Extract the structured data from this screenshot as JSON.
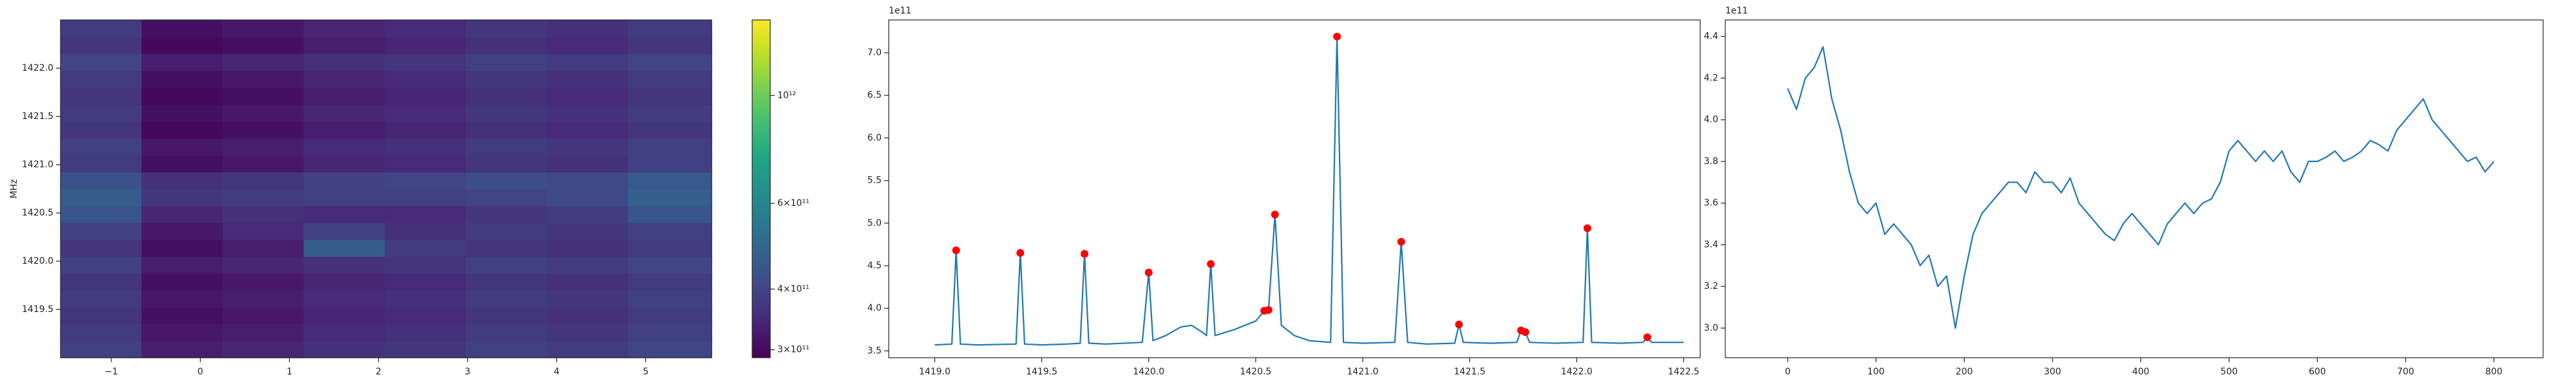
{
  "chart_data": [
    {
      "type": "heatmap",
      "ylabel": "MHz",
      "colormap": "viridis",
      "xlim": [
        -1.57,
        5.74
      ],
      "ylim": [
        1419.0,
        1422.5
      ],
      "xticks": [
        {
          "value": -1,
          "label": "−1"
        },
        0,
        1,
        2,
        3,
        4,
        5
      ],
      "yticks": [
        1419.5,
        {
          "value": 1420.0,
          "label": "1420.0"
        },
        1420.5,
        {
          "value": 1421.0,
          "label": "1421.0"
        },
        1421.5,
        {
          "value": 1422.0,
          "label": "1422.0"
        }
      ],
      "x_edges": [
        -1.57,
        -0.66,
        0.25,
        1.16,
        2.07,
        2.98,
        3.89,
        4.8,
        5.74
      ],
      "y_edges": [
        1419.0,
        1419.175,
        1419.35,
        1419.525,
        1419.7,
        1419.875,
        1420.05,
        1420.225,
        1420.4,
        1420.575,
        1420.75,
        1420.925,
        1421.1,
        1421.275,
        1421.45,
        1421.625,
        1421.8,
        1421.975,
        1422.15,
        1422.325,
        1422.5
      ],
      "z": [
        [
          390000000000.0,
          330000000000.0,
          340000000000.0,
          360000000000.0,
          370000000000.0,
          390000000000.0,
          380000000000.0,
          400000000000.0
        ],
        [
          380000000000.0,
          320000000000.0,
          330000000000.0,
          350000000000.0,
          360000000000.0,
          380000000000.0,
          370000000000.0,
          390000000000.0
        ],
        [
          370000000000.0,
          310000000000.0,
          320000000000.0,
          340000000000.0,
          350000000000.0,
          370000000000.0,
          360000000000.0,
          380000000000.0
        ],
        [
          380000000000.0,
          320000000000.0,
          330000000000.0,
          350000000000.0,
          360000000000.0,
          380000000000.0,
          370000000000.0,
          390000000000.0
        ],
        [
          370000000000.0,
          310000000000.0,
          320000000000.0,
          340000000000.0,
          350000000000.0,
          370000000000.0,
          360000000000.0,
          380000000000.0
        ],
        [
          390000000000.0,
          330000000000.0,
          340000000000.0,
          360000000000.0,
          370000000000.0,
          390000000000.0,
          380000000000.0,
          400000000000.0
        ],
        [
          370000000000.0,
          310000000000.0,
          330000000000.0,
          460000000000.0,
          380000000000.0,
          370000000000.0,
          360000000000.0,
          380000000000.0
        ],
        [
          390000000000.0,
          320000000000.0,
          350000000000.0,
          390000000000.0,
          360000000000.0,
          380000000000.0,
          370000000000.0,
          390000000000.0
        ],
        [
          440000000000.0,
          340000000000.0,
          360000000000.0,
          350000000000.0,
          350000000000.0,
          370000000000.0,
          380000000000.0,
          440000000000.0
        ],
        [
          460000000000.0,
          370000000000.0,
          380000000000.0,
          390000000000.0,
          390000000000.0,
          400000000000.0,
          410000000000.0,
          470000000000.0
        ],
        [
          430000000000.0,
          360000000000.0,
          370000000000.0,
          390000000000.0,
          400000000000.0,
          420000000000.0,
          410000000000.0,
          450000000000.0
        ],
        [
          380000000000.0,
          310000000000.0,
          320000000000.0,
          340000000000.0,
          350000000000.0,
          370000000000.0,
          360000000000.0,
          390000000000.0
        ],
        [
          390000000000.0,
          320000000000.0,
          330000000000.0,
          350000000000.0,
          360000000000.0,
          380000000000.0,
          370000000000.0,
          390000000000.0
        ],
        [
          370000000000.0,
          300000000000.0,
          310000000000.0,
          330000000000.0,
          340000000000.0,
          360000000000.0,
          350000000000.0,
          370000000000.0
        ],
        [
          380000000000.0,
          310000000000.0,
          320000000000.0,
          340000000000.0,
          350000000000.0,
          370000000000.0,
          360000000000.0,
          380000000000.0
        ],
        [
          370000000000.0,
          300000000000.0,
          310000000000.0,
          330000000000.0,
          340000000000.0,
          360000000000.0,
          350000000000.0,
          370000000000.0
        ],
        [
          380000000000.0,
          310000000000.0,
          320000000000.0,
          340000000000.0,
          350000000000.0,
          370000000000.0,
          360000000000.0,
          380000000000.0
        ],
        [
          400000000000.0,
          330000000000.0,
          340000000000.0,
          360000000000.0,
          370000000000.0,
          390000000000.0,
          380000000000.0,
          400000000000.0
        ],
        [
          370000000000.0,
          300000000000.0,
          310000000000.0,
          330000000000.0,
          340000000000.0,
          360000000000.0,
          350000000000.0,
          370000000000.0
        ],
        [
          380000000000.0,
          310000000000.0,
          320000000000.0,
          340000000000.0,
          350000000000.0,
          370000000000.0,
          360000000000.0,
          380000000000.0
        ]
      ],
      "colorbar": {
        "scale": "log",
        "lim": [
          289000000000.0,
          1430000000000.0
        ],
        "ticks": [
          {
            "value": 300000000000.0,
            "label": "3×10¹¹"
          },
          {
            "value": 400000000000.0,
            "label": "4×10¹¹"
          },
          {
            "value": 600000000000.0,
            "label": "6×10¹¹"
          },
          {
            "value": 1000000000000.0,
            "label": "10¹²"
          }
        ]
      }
    },
    {
      "type": "line",
      "y_offset": "1e11",
      "color": "#1f77b4",
      "xlim": [
        1418.785,
        1422.577
      ],
      "ylim": [
        3.42,
        7.385
      ],
      "xticks": [
        {
          "value": 1419.0,
          "label": "1419.0"
        },
        1419.5,
        {
          "value": 1420.0,
          "label": "1420.0"
        },
        1420.5,
        {
          "value": 1421.0,
          "label": "1421.0"
        },
        1421.5,
        {
          "value": 1422.0,
          "label": "1422.0"
        },
        1422.5
      ],
      "yticks": [
        3.5,
        {
          "value": 4.0,
          "label": "4.0"
        },
        4.5,
        {
          "value": 5.0,
          "label": "5.0"
        },
        5.5,
        {
          "value": 6.0,
          "label": "6.0"
        },
        6.5,
        {
          "value": 7.0,
          "label": "7.0"
        }
      ],
      "x": [
        1419.0,
        1419.08,
        1419.1,
        1419.12,
        1419.2,
        1419.38,
        1419.4,
        1419.42,
        1419.5,
        1419.62,
        1419.68,
        1419.7,
        1419.72,
        1419.8,
        1419.97,
        1420.0,
        1420.02,
        1420.08,
        1420.15,
        1420.2,
        1420.25,
        1420.27,
        1420.29,
        1420.31,
        1420.4,
        1420.5,
        1420.54,
        1420.56,
        1420.59,
        1420.62,
        1420.68,
        1420.75,
        1420.85,
        1420.88,
        1420.91,
        1421.0,
        1421.15,
        1421.18,
        1421.21,
        1421.3,
        1421.43,
        1421.45,
        1421.47,
        1421.6,
        1421.72,
        1421.74,
        1421.76,
        1421.78,
        1421.9,
        1422.03,
        1422.05,
        1422.07,
        1422.2,
        1422.31,
        1422.33,
        1422.35,
        1422.5
      ],
      "values": [
        3.57,
        3.58,
        4.68,
        3.58,
        3.57,
        3.58,
        4.65,
        3.58,
        3.57,
        3.58,
        3.59,
        4.64,
        3.59,
        3.58,
        3.6,
        4.42,
        3.62,
        3.68,
        3.78,
        3.8,
        3.72,
        3.68,
        4.52,
        3.68,
        3.75,
        3.85,
        3.97,
        3.98,
        5.1,
        3.8,
        3.68,
        3.62,
        3.6,
        7.19,
        3.6,
        3.59,
        3.6,
        4.78,
        3.6,
        3.58,
        3.59,
        3.81,
        3.6,
        3.59,
        3.6,
        3.74,
        3.72,
        3.6,
        3.59,
        3.6,
        4.94,
        3.6,
        3.59,
        3.6,
        3.66,
        3.6,
        3.6
      ],
      "peaks": {
        "color": "#ff0000",
        "x": [
          1419.1,
          1419.4,
          1419.7,
          1420.0,
          1420.29,
          1420.54,
          1420.56,
          1420.59,
          1420.88,
          1421.18,
          1421.45,
          1421.74,
          1421.76,
          1422.05,
          1422.33
        ],
        "values": [
          4.68,
          4.65,
          4.64,
          4.42,
          4.52,
          3.97,
          3.98,
          5.1,
          7.19,
          4.78,
          3.81,
          3.74,
          3.72,
          4.94,
          3.66
        ]
      }
    },
    {
      "type": "line",
      "y_offset": "1e11",
      "color": "#1f77b4",
      "xlim": [
        -70.7,
        855.8
      ],
      "ylim": [
        2.858,
        4.479
      ],
      "xticks": [
        0,
        100,
        200,
        300,
        400,
        500,
        600,
        700,
        800
      ],
      "yticks": [
        {
          "value": 3.0,
          "label": "3.0"
        },
        3.2,
        3.4,
        3.6,
        3.8,
        {
          "value": 4.0,
          "label": "4.0"
        },
        4.2,
        4.4
      ],
      "x": [
        0,
        10,
        20,
        30,
        40,
        50,
        60,
        70,
        80,
        90,
        100,
        110,
        120,
        130,
        140,
        150,
        160,
        170,
        180,
        190,
        200,
        210,
        220,
        230,
        240,
        250,
        260,
        270,
        280,
        290,
        300,
        310,
        320,
        330,
        340,
        350,
        360,
        370,
        380,
        390,
        400,
        410,
        420,
        430,
        440,
        450,
        460,
        470,
        480,
        490,
        500,
        510,
        520,
        530,
        540,
        550,
        560,
        570,
        580,
        590,
        600,
        610,
        620,
        630,
        640,
        650,
        660,
        670,
        680,
        690,
        700,
        710,
        720,
        730,
        740,
        750,
        760,
        770,
        780,
        790,
        800
      ],
      "values": [
        4.15,
        4.05,
        4.2,
        4.25,
        4.35,
        4.1,
        3.95,
        3.75,
        3.6,
        3.55,
        3.6,
        3.45,
        3.5,
        3.45,
        3.4,
        3.3,
        3.35,
        3.2,
        3.25,
        3.0,
        3.25,
        3.45,
        3.55,
        3.6,
        3.65,
        3.7,
        3.7,
        3.65,
        3.75,
        3.7,
        3.7,
        3.65,
        3.72,
        3.6,
        3.55,
        3.5,
        3.45,
        3.42,
        3.5,
        3.55,
        3.5,
        3.45,
        3.4,
        3.5,
        3.55,
        3.6,
        3.55,
        3.6,
        3.62,
        3.7,
        3.85,
        3.9,
        3.85,
        3.8,
        3.85,
        3.8,
        3.85,
        3.75,
        3.7,
        3.8,
        3.8,
        3.82,
        3.85,
        3.8,
        3.82,
        3.85,
        3.9,
        3.88,
        3.85,
        3.95,
        4.0,
        4.05,
        4.1,
        4.0,
        3.95,
        3.9,
        3.85,
        3.8,
        3.82,
        3.75,
        3.8
      ]
    }
  ]
}
